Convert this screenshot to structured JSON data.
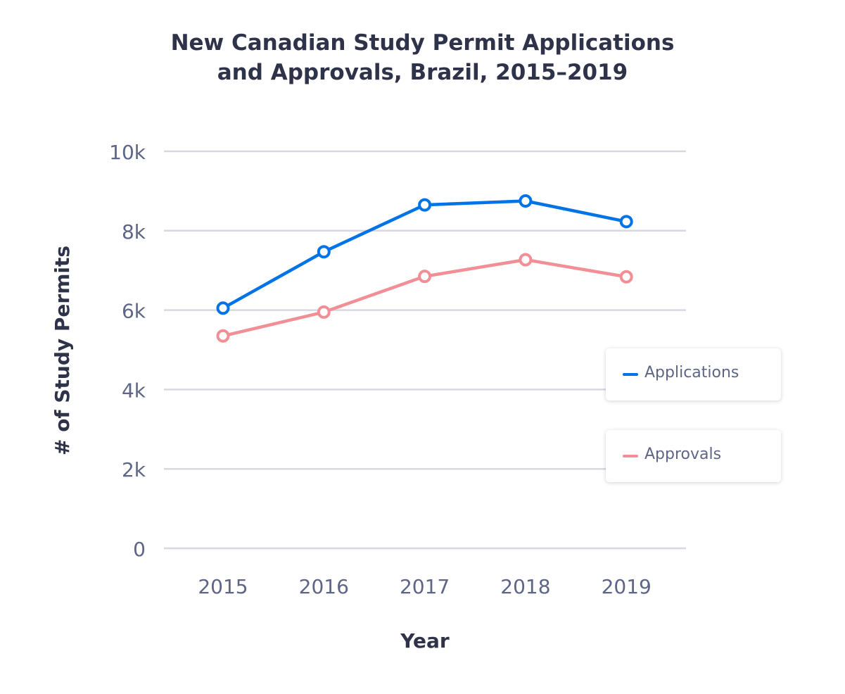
{
  "chart_data": {
    "type": "line",
    "title_line1": "New Canadian Study Permit Applications",
    "title_line2": "and Approvals, Brazil, 2015–2019",
    "xlabel": "Year",
    "ylabel": "# of Study Permits",
    "categories": [
      "2015",
      "2016",
      "2017",
      "2018",
      "2019"
    ],
    "ylim": [
      0,
      10000
    ],
    "yticks": [
      0,
      2000,
      4000,
      6000,
      8000,
      10000
    ],
    "ytick_labels": [
      "0",
      "2k",
      "4k",
      "6k",
      "8k",
      "10k"
    ],
    "grid": true,
    "legend_position": "right",
    "series": [
      {
        "name": "Applications",
        "color": "#0073e6",
        "values": [
          6050,
          7470,
          8650,
          8750,
          8230
        ]
      },
      {
        "name": "Approvals",
        "color": "#f28f96",
        "values": [
          5350,
          5950,
          6850,
          7270,
          6840
        ]
      }
    ]
  }
}
